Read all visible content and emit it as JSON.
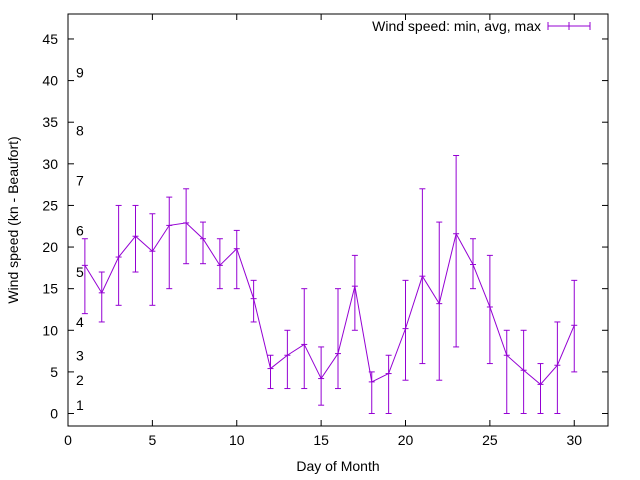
{
  "chart_data": {
    "type": "line",
    "subtype": "errorbars",
    "xlabel": "Day of Month",
    "ylabel": "Wind speed (kn - Beaufort)",
    "xlim": [
      0,
      32
    ],
    "ylim": [
      -1.5,
      48
    ],
    "x_ticks": [
      0,
      5,
      10,
      15,
      20,
      25,
      30
    ],
    "y_ticks": [
      0,
      5,
      10,
      15,
      20,
      25,
      30,
      35,
      40,
      45
    ],
    "grid": false,
    "legend": {
      "position": "top-right",
      "label": "Wind speed: min, avg, max"
    },
    "color": "#9400D3",
    "beaufort_labels": [
      {
        "label": "1",
        "y": 1
      },
      {
        "label": "2",
        "y": 4
      },
      {
        "label": "3",
        "y": 7
      },
      {
        "label": "4",
        "y": 11
      },
      {
        "label": "5",
        "y": 17
      },
      {
        "label": "6",
        "y": 22
      },
      {
        "label": "7",
        "y": 28
      },
      {
        "label": "8",
        "y": 34
      },
      {
        "label": "9",
        "y": 41
      }
    ],
    "series": [
      {
        "name": "Wind speed: min, avg, max",
        "x": [
          1,
          2,
          3,
          4,
          5,
          6,
          7,
          8,
          9,
          10,
          11,
          12,
          13,
          14,
          15,
          16,
          17,
          18,
          19,
          20,
          21,
          22,
          23,
          24,
          25,
          26,
          27,
          28,
          29,
          30
        ],
        "avg": [
          17.8,
          14.5,
          18.8,
          21.3,
          19.5,
          22.6,
          22.9,
          21.0,
          17.8,
          19.8,
          13.8,
          5.4,
          7.0,
          8.3,
          4.2,
          7.2,
          15.3,
          3.8,
          4.8,
          10.2,
          16.5,
          13.2,
          21.6,
          17.9,
          12.8,
          7.0,
          5.2,
          3.5,
          5.8,
          10.6
        ],
        "min": [
          12,
          11,
          13,
          17,
          13,
          15,
          18,
          18,
          15,
          15,
          11,
          3,
          3,
          3,
          1,
          3,
          10,
          0,
          0,
          4,
          6,
          4,
          8,
          15,
          6,
          0,
          0,
          0,
          0,
          5
        ],
        "max": [
          21,
          17,
          25,
          25,
          24,
          26,
          27,
          23,
          21,
          22,
          16,
          7,
          10,
          15,
          8,
          15,
          19,
          5,
          7,
          16,
          27,
          23,
          31,
          21,
          19,
          10,
          10,
          6,
          11,
          16
        ]
      }
    ]
  }
}
